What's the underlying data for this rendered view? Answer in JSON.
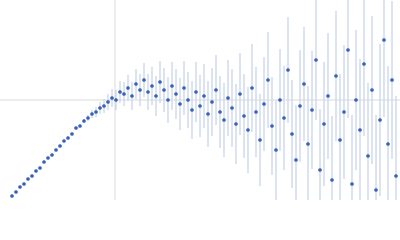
{
  "chart_data": {
    "type": "scatter",
    "x": [
      3,
      4,
      5,
      6,
      7,
      8,
      9,
      10,
      11,
      12,
      13,
      14,
      15,
      16,
      17,
      18,
      19,
      20,
      21,
      22,
      23,
      24,
      25,
      26,
      27,
      28,
      29,
      30,
      31,
      32,
      33,
      34,
      35,
      36,
      37,
      38,
      39,
      40,
      41,
      42,
      43,
      44,
      45,
      46,
      47,
      48,
      49,
      50,
      51,
      52,
      53,
      54,
      55,
      56,
      57,
      58,
      59,
      60,
      61,
      62,
      63,
      64,
      65,
      66,
      67,
      68,
      69,
      70,
      71,
      72,
      73,
      74,
      75,
      76,
      77,
      78,
      79,
      80,
      81,
      82,
      83,
      84,
      85,
      86,
      87,
      88,
      89,
      90,
      91,
      92,
      93,
      94,
      95,
      96,
      97,
      98,
      99
    ],
    "series": [
      {
        "color": "#3a62b8",
        "error_color": "#c5d3ec",
        "values": [
          2,
          4,
          6.5,
          8,
          10.5,
          12,
          14.5,
          16,
          19,
          21,
          22.5,
          25,
          27,
          29.5,
          31,
          33,
          36,
          37,
          39.5,
          41,
          43,
          44,
          46,
          47,
          49,
          51,
          50,
          54,
          53,
          56,
          52,
          58,
          55,
          60,
          54,
          57,
          52,
          59,
          55,
          50,
          57,
          53,
          48,
          56,
          50,
          45,
          54,
          47,
          52,
          43,
          49,
          55,
          44,
          40,
          51,
          46,
          38,
          53,
          42,
          35,
          56,
          44,
          30,
          48,
          60,
          37,
          25,
          50,
          41,
          65,
          33,
          20,
          47,
          58,
          28,
          45,
          70,
          15,
          38,
          52,
          10,
          62,
          30,
          44,
          75,
          8,
          50,
          35,
          68,
          22,
          55,
          5,
          40,
          80,
          28,
          60,
          12
        ],
        "errors": [
          0.5,
          0.5,
          0.5,
          0.5,
          0.5,
          0.5,
          0.5,
          0.5,
          0.5,
          0.5,
          0.5,
          0.5,
          0.5,
          0.5,
          0.5,
          0.5,
          0.5,
          0.5,
          1,
          1.5,
          2,
          2.5,
          3,
          3.5,
          4,
          4.5,
          5,
          5.5,
          6,
          6.5,
          7,
          7.5,
          8,
          8.5,
          9,
          9.5,
          10,
          10.5,
          11,
          11.5,
          12,
          12.5,
          13,
          13.5,
          14,
          14.5,
          15,
          15.5,
          16,
          16.5,
          17,
          17.5,
          18,
          18.5,
          19,
          19.5,
          20,
          20.5,
          21,
          21.5,
          22,
          22.5,
          23,
          23.5,
          24,
          24.5,
          25,
          25.5,
          26,
          26.5,
          27,
          27.5,
          28,
          28.5,
          29,
          29.5,
          30,
          30.5,
          31,
          31.5,
          32,
          32.5,
          33,
          33.5,
          34,
          34.5,
          35,
          35.5,
          36,
          36.5,
          37,
          37.5,
          38,
          38.5,
          39,
          39.5,
          40
        ]
      }
    ],
    "xlim": [
      0,
      100
    ],
    "ylim": [
      0,
      100
    ],
    "xticks": [
      28.75
    ],
    "yticks": [
      50
    ],
    "grid": true
  }
}
